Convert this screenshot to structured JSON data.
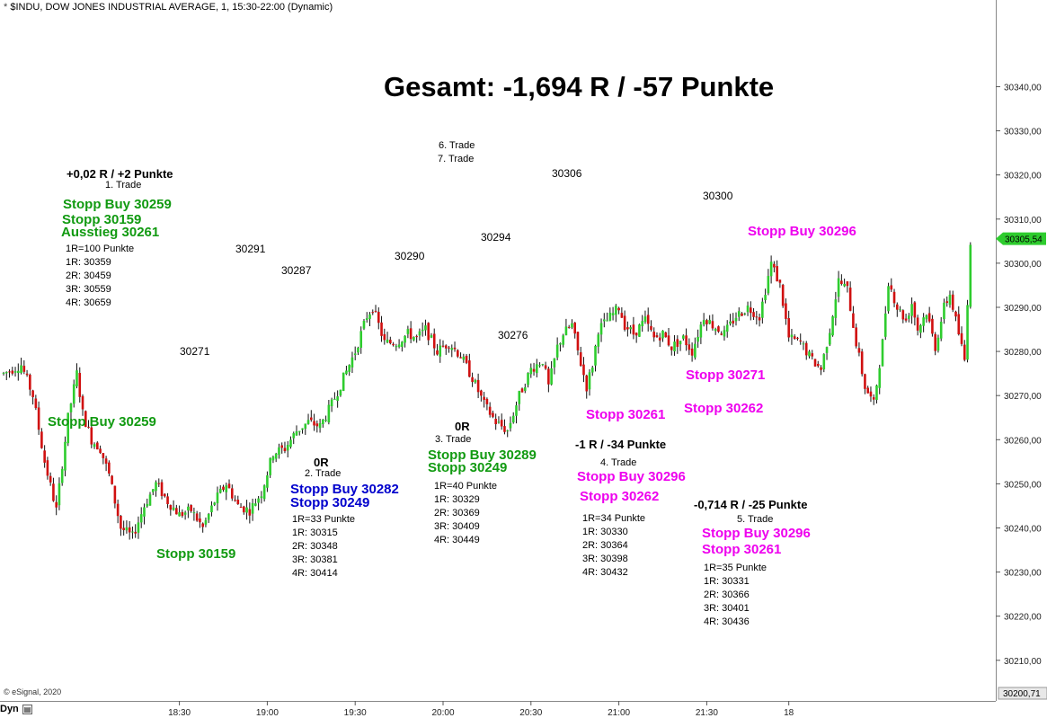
{
  "header": {
    "lock_symbol": "*",
    "title": "$INDU, DOW JONES INDUSTRIAL AVERAGE, 1, 15:30-22:00 (Dynamic)"
  },
  "footer": {
    "copyright": "© eSignal, 2020",
    "mode_label": "Dyn"
  },
  "colors": {
    "up": "#2ecc2e",
    "down": "#d01010",
    "green_text": "#119a11",
    "blue_text": "#0000cc",
    "magenta_text": "#ee00ee",
    "last_price_bg": "#2ecc2e"
  },
  "chart_data": {
    "type": "candlestick",
    "title": "Gesamt: -1,694 R / -57 Punkte",
    "xlabel": "",
    "ylabel": "",
    "ylim": [
      30200.71,
      30345
    ],
    "y_ticks": [
      "30210,00",
      "30220,00",
      "30230,00",
      "30240,00",
      "30250,00",
      "30260,00",
      "30270,00",
      "30280,00",
      "30290,00",
      "30300,00",
      "30310,00",
      "30320,00",
      "30330,00",
      "30340,00"
    ],
    "y_min_label": "30200,71",
    "last_price": "30305,54",
    "x_ticks": [
      {
        "label": "18:30",
        "t": 60
      },
      {
        "label": "19:00",
        "t": 90
      },
      {
        "label": "19:30",
        "t": 120
      },
      {
        "label": "20:00",
        "t": 150
      },
      {
        "label": "20:30",
        "t": 180
      },
      {
        "label": "21:00",
        "t": 210
      },
      {
        "label": "21:30",
        "t": 240
      },
      {
        "label": "18",
        "t": 268
      }
    ],
    "close_path": [
      [
        0,
        30275
      ],
      [
        6,
        30277
      ],
      [
        10,
        30270
      ],
      [
        14,
        30255
      ],
      [
        18,
        30244
      ],
      [
        22,
        30265
      ],
      [
        25,
        30275
      ],
      [
        27,
        30266
      ],
      [
        30,
        30260
      ],
      [
        33,
        30258
      ],
      [
        36,
        30252
      ],
      [
        40,
        30240
      ],
      [
        44,
        30238
      ],
      [
        48,
        30245
      ],
      [
        52,
        30250
      ],
      [
        56,
        30246
      ],
      [
        60,
        30243
      ],
      [
        64,
        30244
      ],
      [
        68,
        30240
      ],
      [
        72,
        30246
      ],
      [
        76,
        30250
      ],
      [
        80,
        30245
      ],
      [
        84,
        30244
      ],
      [
        88,
        30248
      ],
      [
        92,
        30257
      ],
      [
        96,
        30258
      ],
      [
        100,
        30262
      ],
      [
        104,
        30264
      ],
      [
        108,
        30263
      ],
      [
        112,
        30268
      ],
      [
        116,
        30274
      ],
      [
        120,
        30280
      ],
      [
        124,
        30288
      ],
      [
        126,
        30290
      ],
      [
        130,
        30282
      ],
      [
        134,
        30282
      ],
      [
        138,
        30284
      ],
      [
        141,
        30283
      ],
      [
        144,
        30285
      ],
      [
        148,
        30280
      ],
      [
        152,
        30282
      ],
      [
        156,
        30279
      ],
      [
        160,
        30274
      ],
      [
        164,
        30268
      ],
      [
        168,
        30264
      ],
      [
        172,
        30262
      ],
      [
        176,
        30270
      ],
      [
        180,
        30276
      ],
      [
        184,
        30278
      ],
      [
        186,
        30272
      ],
      [
        189,
        30281
      ],
      [
        191,
        30284
      ],
      [
        194,
        30286
      ],
      [
        196,
        30280
      ],
      [
        199,
        30272
      ],
      [
        201,
        30277
      ],
      [
        203,
        30285
      ],
      [
        206,
        30287
      ],
      [
        210,
        30290
      ],
      [
        212,
        30286
      ],
      [
        215,
        30284
      ],
      [
        219,
        30287
      ],
      [
        222,
        30283
      ],
      [
        225,
        30284
      ],
      [
        228,
        30281
      ],
      [
        232,
        30283
      ],
      [
        235,
        30280
      ],
      [
        239,
        30288
      ],
      [
        242,
        30286
      ],
      [
        246,
        30284
      ],
      [
        250,
        30288
      ],
      [
        254,
        30290
      ],
      [
        258,
        30288
      ],
      [
        262,
        30300
      ],
      [
        265,
        30295
      ],
      [
        268,
        30283
      ],
      [
        272,
        30282
      ],
      [
        276,
        30278
      ],
      [
        279,
        30276
      ],
      [
        282,
        30285
      ],
      [
        285,
        30296
      ],
      [
        288,
        30294
      ],
      [
        291,
        30282
      ],
      [
        294,
        30272
      ],
      [
        297,
        30268
      ],
      [
        300,
        30282
      ],
      [
        302,
        30296
      ],
      [
        305,
        30290
      ],
      [
        308,
        30287
      ],
      [
        310,
        30291
      ],
      [
        312,
        30285
      ],
      [
        315,
        30289
      ],
      [
        318,
        30281
      ],
      [
        321,
        30290
      ],
      [
        323,
        30293
      ],
      [
        326,
        30284
      ],
      [
        328,
        30278
      ],
      [
        330,
        30305
      ]
    ],
    "key_levels": [
      {
        "label": "30291",
        "price": 30291
      },
      {
        "label": "30287",
        "price": 30287
      },
      {
        "label": "30271",
        "price": 30271
      },
      {
        "label": "30290",
        "price": 30290
      },
      {
        "label": "30294",
        "price": 30294
      },
      {
        "label": "30276",
        "price": 30276
      },
      {
        "label": "30306",
        "price": 30306
      },
      {
        "label": "30300",
        "price": 30300
      }
    ],
    "trades": [
      {
        "result": "+0,02 R / +2 Punkte",
        "name": "1. Trade",
        "orders": [
          "Stopp Buy 30259",
          "Stopp 30159",
          "Ausstieg 30261"
        ],
        "targets": [
          "1R=100 Punkte",
          "1R: 30359",
          "2R: 30459",
          "3R: 30559",
          "4R: 30659"
        ]
      },
      {
        "result": "0R",
        "name": "2. Trade",
        "orders": [
          "Stopp Buy 30282",
          "Stopp 30249"
        ],
        "targets": [
          "1R=33 Punkte",
          "1R: 30315",
          "2R: 30348",
          "3R: 30381",
          "4R: 30414"
        ]
      },
      {
        "result": "0R",
        "name": "3. Trade",
        "orders": [
          "Stopp Buy 30289",
          "Stopp 30249"
        ],
        "targets": [
          "1R=40 Punkte",
          "1R: 30329",
          "2R: 30369",
          "3R: 30409",
          "4R: 30449"
        ]
      },
      {
        "result": "-1 R / -34 Punkte",
        "name": "4. Trade",
        "orders": [
          "Stopp Buy 30296",
          "Stopp 30262"
        ],
        "targets": [
          "1R=34 Punkte",
          "1R: 30330",
          "2R: 30364",
          "3R: 30398",
          "4R: 30432"
        ]
      },
      {
        "result": "-0,714 R / -25 Punkte",
        "name": "5. Trade",
        "orders": [
          "Stopp Buy 30296",
          "Stopp 30261"
        ],
        "targets": [
          "1R=35 Punkte",
          "1R: 30331",
          "2R: 30366",
          "3R: 30401",
          "4R: 30436"
        ]
      }
    ],
    "trade_labels_6_7": [
      "6. Trade",
      "7. Trade"
    ],
    "side_labels": {
      "stopp_buy_30259": "Stopp Buy 30259",
      "stopp_30159": "Stopp 30159",
      "stopp_buy_30296_right": "Stopp Buy 30296",
      "stopp_30271": "Stopp 30271",
      "stopp_30261": "Stopp 30261",
      "stopp_30262": "Stopp 30262"
    }
  }
}
